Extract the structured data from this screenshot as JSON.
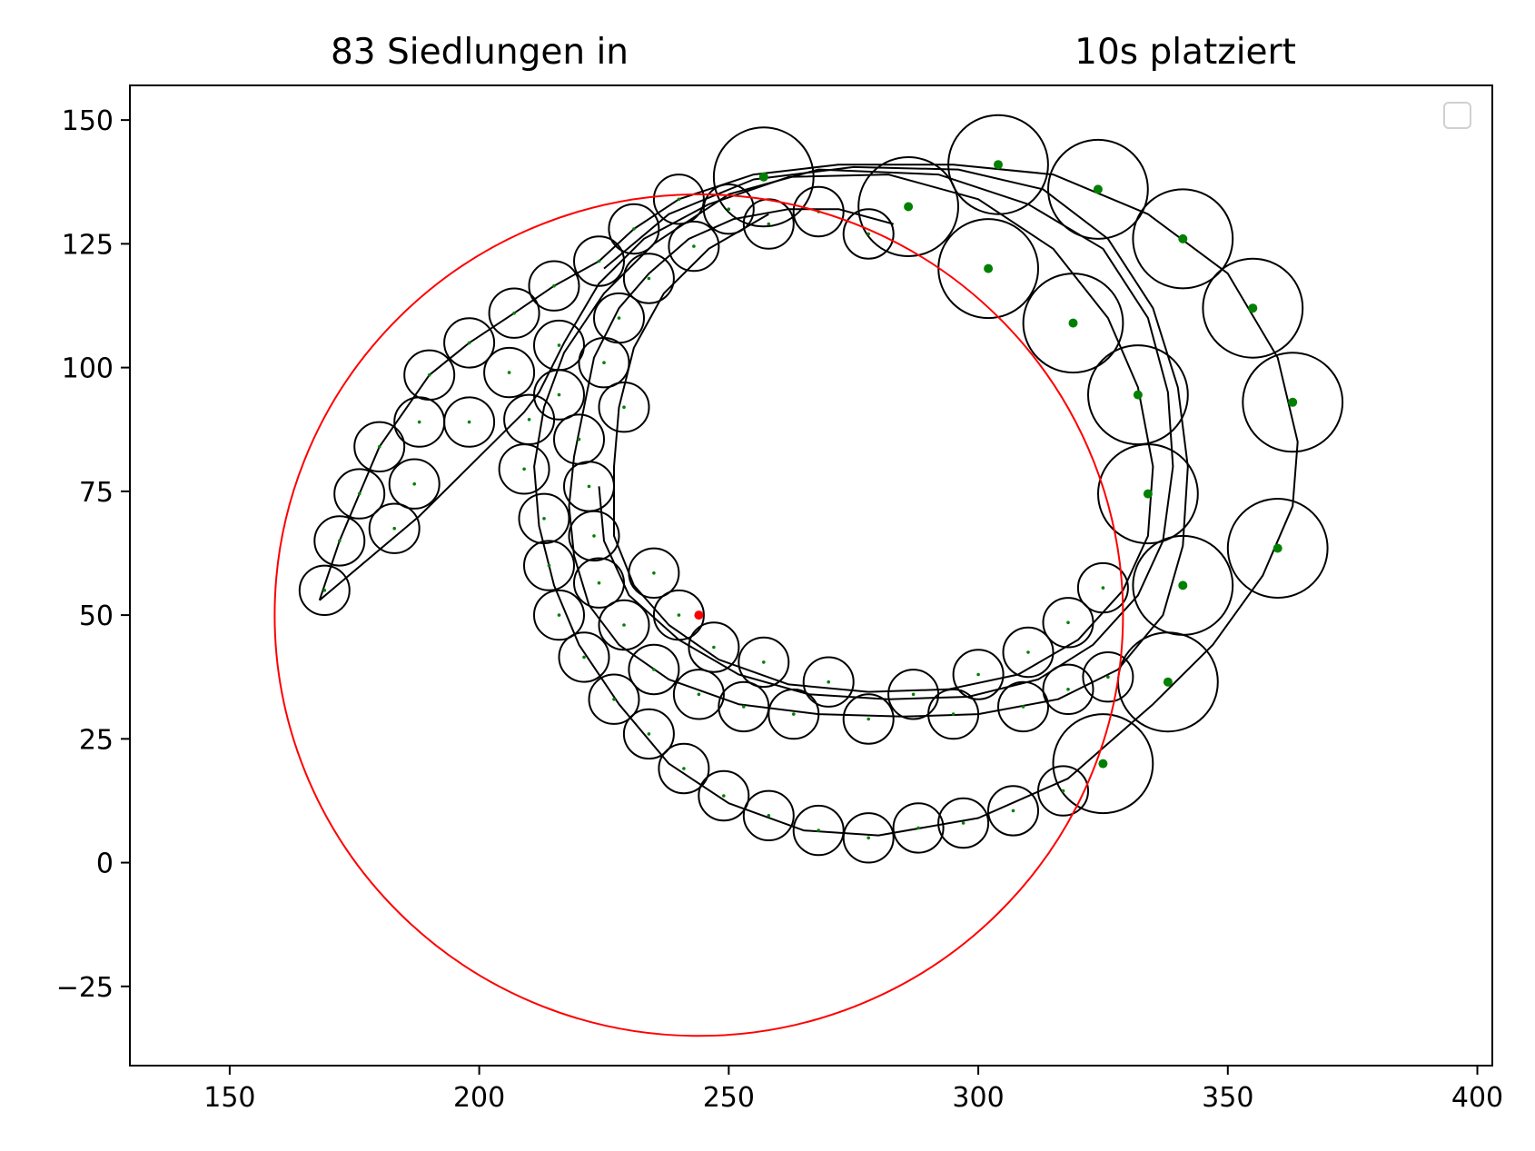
{
  "chart_data": {
    "type": "scatter",
    "title_left": "83 Siedlungen in",
    "title_right": "10s platziert",
    "xlabel": "",
    "ylabel": "",
    "xlim": [
      130,
      403
    ],
    "ylim": [
      -41,
      157
    ],
    "xticks": [
      150,
      200,
      250,
      300,
      350,
      400
    ],
    "yticks": [
      -25,
      0,
      25,
      50,
      75,
      100,
      125,
      150
    ],
    "ytick_labels": [
      "−25",
      "0",
      "25",
      "50",
      "75",
      "100",
      "125",
      "150"
    ],
    "grid": false,
    "legend": {
      "placement": "top-right",
      "entries": []
    },
    "colors": {
      "settlement_edge": "#000000",
      "center_dot": "#008000",
      "boundary": "#ff0000",
      "path": "#000000"
    },
    "boundary_circle": {
      "cx": 244,
      "cy": 50,
      "r": 85
    },
    "start_point": {
      "x": 244,
      "y": 50
    },
    "settlements": [
      {
        "x": 169,
        "y": 55,
        "r": 5
      },
      {
        "x": 172,
        "y": 65,
        "r": 5
      },
      {
        "x": 176,
        "y": 74.5,
        "r": 5
      },
      {
        "x": 180,
        "y": 84,
        "r": 5
      },
      {
        "x": 190,
        "y": 98.5,
        "r": 5
      },
      {
        "x": 198,
        "y": 105,
        "r": 5
      },
      {
        "x": 207,
        "y": 111,
        "r": 5
      },
      {
        "x": 215,
        "y": 116.5,
        "r": 5
      },
      {
        "x": 224,
        "y": 121.5,
        "r": 5
      },
      {
        "x": 231,
        "y": 128,
        "r": 5
      },
      {
        "x": 240,
        "y": 134,
        "r": 5
      },
      {
        "x": 250,
        "y": 132,
        "r": 5
      },
      {
        "x": 258,
        "y": 129,
        "r": 5
      },
      {
        "x": 268,
        "y": 131.5,
        "r": 5
      },
      {
        "x": 278,
        "y": 127,
        "r": 5
      },
      {
        "x": 257,
        "y": 138.5,
        "r": 10
      },
      {
        "x": 286,
        "y": 132.5,
        "r": 10
      },
      {
        "x": 304,
        "y": 141,
        "r": 10
      },
      {
        "x": 324,
        "y": 136,
        "r": 10
      },
      {
        "x": 341,
        "y": 126,
        "r": 10
      },
      {
        "x": 355,
        "y": 112,
        "r": 10
      },
      {
        "x": 363,
        "y": 93,
        "r": 10
      },
      {
        "x": 360,
        "y": 63.5,
        "r": 10
      },
      {
        "x": 341,
        "y": 56,
        "r": 10
      },
      {
        "x": 338,
        "y": 36.5,
        "r": 10
      },
      {
        "x": 325,
        "y": 20,
        "r": 10
      },
      {
        "x": 302,
        "y": 120,
        "r": 10
      },
      {
        "x": 319,
        "y": 109,
        "r": 10
      },
      {
        "x": 332,
        "y": 94.5,
        "r": 10
      },
      {
        "x": 334,
        "y": 74.5,
        "r": 10
      },
      {
        "x": 317,
        "y": 14.5,
        "r": 5
      },
      {
        "x": 307,
        "y": 10.5,
        "r": 5
      },
      {
        "x": 297,
        "y": 8,
        "r": 5
      },
      {
        "x": 288,
        "y": 7,
        "r": 5
      },
      {
        "x": 278,
        "y": 5,
        "r": 5
      },
      {
        "x": 268,
        "y": 6.5,
        "r": 5
      },
      {
        "x": 258,
        "y": 9.5,
        "r": 5
      },
      {
        "x": 249,
        "y": 13.5,
        "r": 5
      },
      {
        "x": 241,
        "y": 19,
        "r": 5
      },
      {
        "x": 234,
        "y": 26,
        "r": 5
      },
      {
        "x": 227,
        "y": 33,
        "r": 5
      },
      {
        "x": 221,
        "y": 41.5,
        "r": 5
      },
      {
        "x": 216,
        "y": 50,
        "r": 5
      },
      {
        "x": 214,
        "y": 60,
        "r": 5
      },
      {
        "x": 213,
        "y": 69.5,
        "r": 5
      },
      {
        "x": 209,
        "y": 79.5,
        "r": 5
      },
      {
        "x": 210,
        "y": 89.5,
        "r": 5
      },
      {
        "x": 206,
        "y": 99,
        "r": 5
      },
      {
        "x": 198,
        "y": 89,
        "r": 5
      },
      {
        "x": 188,
        "y": 89,
        "r": 5
      },
      {
        "x": 187,
        "y": 76.5,
        "r": 5
      },
      {
        "x": 183,
        "y": 67.5,
        "r": 5
      },
      {
        "x": 216,
        "y": 104.5,
        "r": 5
      },
      {
        "x": 216,
        "y": 94.5,
        "r": 5
      },
      {
        "x": 220,
        "y": 85.5,
        "r": 5
      },
      {
        "x": 222,
        "y": 76,
        "r": 5
      },
      {
        "x": 225,
        "y": 101,
        "r": 5
      },
      {
        "x": 229,
        "y": 92,
        "r": 5
      },
      {
        "x": 228,
        "y": 110,
        "r": 5
      },
      {
        "x": 234,
        "y": 118,
        "r": 5
      },
      {
        "x": 243,
        "y": 124.5,
        "r": 5
      },
      {
        "x": 223,
        "y": 66,
        "r": 5
      },
      {
        "x": 224,
        "y": 56.5,
        "r": 5
      },
      {
        "x": 229,
        "y": 48,
        "r": 5
      },
      {
        "x": 235,
        "y": 39,
        "r": 5
      },
      {
        "x": 244,
        "y": 34,
        "r": 5
      },
      {
        "x": 253,
        "y": 31.5,
        "r": 5
      },
      {
        "x": 263,
        "y": 30,
        "r": 5
      },
      {
        "x": 278,
        "y": 29,
        "r": 5
      },
      {
        "x": 295,
        "y": 30,
        "r": 5
      },
      {
        "x": 309,
        "y": 31.5,
        "r": 5
      },
      {
        "x": 318,
        "y": 35,
        "r": 5
      },
      {
        "x": 326,
        "y": 37.5,
        "r": 5
      },
      {
        "x": 235,
        "y": 58.5,
        "r": 5
      },
      {
        "x": 240,
        "y": 50,
        "r": 5
      },
      {
        "x": 247,
        "y": 43.5,
        "r": 5
      },
      {
        "x": 257,
        "y": 40.5,
        "r": 5
      },
      {
        "x": 270,
        "y": 36.5,
        "r": 5
      },
      {
        "x": 287,
        "y": 34,
        "r": 5
      },
      {
        "x": 300,
        "y": 38,
        "r": 5
      },
      {
        "x": 310,
        "y": 42.5,
        "r": 5
      },
      {
        "x": 318,
        "y": 48.5,
        "r": 5
      },
      {
        "x": 325,
        "y": 55.5,
        "r": 5
      }
    ],
    "paths": [
      [
        [
          168,
          53
        ],
        [
          172,
          65
        ],
        [
          176,
          74.5
        ],
        [
          180,
          84
        ],
        [
          190,
          98.5
        ],
        [
          198,
          105
        ],
        [
          207,
          111
        ],
        [
          215,
          116.5
        ],
        [
          224,
          121.5
        ],
        [
          231,
          128
        ],
        [
          240,
          134
        ],
        [
          255,
          139
        ],
        [
          272,
          141
        ],
        [
          295,
          141
        ],
        [
          315,
          139
        ],
        [
          334,
          131
        ],
        [
          350,
          119
        ],
        [
          360,
          102
        ],
        [
          364,
          85
        ],
        [
          363,
          72
        ],
        [
          357,
          58
        ],
        [
          347,
          44
        ],
        [
          335,
          32
        ],
        [
          318,
          17
        ],
        [
          300,
          9
        ],
        [
          280,
          5.5
        ],
        [
          265,
          6.5
        ],
        [
          250,
          12
        ],
        [
          238,
          20
        ],
        [
          228,
          32
        ],
        [
          220,
          44
        ],
        [
          215,
          56
        ],
        [
          212,
          68
        ],
        [
          211,
          80
        ],
        [
          213,
          92
        ],
        [
          217,
          103
        ],
        [
          225,
          115
        ],
        [
          235,
          125
        ],
        [
          250,
          135
        ],
        [
          268,
          140
        ],
        [
          292,
          139
        ],
        [
          310,
          133
        ],
        [
          325,
          124
        ],
        [
          334,
          110
        ],
        [
          338,
          95
        ],
        [
          339,
          80
        ],
        [
          337,
          65
        ],
        [
          332,
          54
        ],
        [
          323,
          44
        ],
        [
          312,
          37
        ],
        [
          298,
          33.5
        ],
        [
          282,
          33
        ],
        [
          266,
          34
        ],
        [
          252,
          38
        ],
        [
          240,
          45
        ],
        [
          230,
          54
        ],
        [
          225,
          65
        ],
        [
          224,
          76
        ]
      ],
      [
        [
          168,
          53
        ],
        [
          188,
          70
        ],
        [
          200,
          82
        ],
        [
          209,
          91
        ],
        [
          212,
          95
        ],
        [
          217,
          105
        ],
        [
          224,
          117
        ],
        [
          233,
          126
        ],
        [
          246,
          133
        ],
        [
          262,
          138.5
        ],
        [
          282,
          139
        ],
        [
          300,
          134
        ],
        [
          315,
          124
        ],
        [
          326,
          110
        ],
        [
          332,
          96
        ],
        [
          335,
          80
        ],
        [
          334,
          66
        ],
        [
          329,
          55
        ],
        [
          320,
          45
        ],
        [
          308,
          38
        ],
        [
          294,
          35
        ],
        [
          278,
          34.5
        ],
        [
          262,
          36
        ],
        [
          248,
          41
        ],
        [
          238,
          48
        ],
        [
          231,
          56
        ],
        [
          227,
          66
        ],
        [
          227,
          80
        ],
        [
          228,
          92
        ],
        [
          231,
          104
        ],
        [
          237,
          115
        ],
        [
          246,
          124
        ],
        [
          258,
          131
        ]
      ],
      [
        [
          225,
          120
        ],
        [
          238,
          131
        ],
        [
          255,
          138
        ],
        [
          275,
          140.5
        ],
        [
          296,
          140
        ],
        [
          313,
          136
        ],
        [
          326,
          126
        ],
        [
          335,
          112
        ],
        [
          340,
          96
        ],
        [
          342,
          80
        ],
        [
          341,
          64
        ],
        [
          337,
          50
        ],
        [
          328,
          39
        ],
        [
          316,
          33
        ],
        [
          300,
          30
        ],
        [
          285,
          29.5
        ],
        [
          268,
          30
        ],
        [
          252,
          32
        ],
        [
          238,
          37
        ],
        [
          228,
          44
        ],
        [
          222,
          52
        ],
        [
          219,
          62
        ],
        [
          218,
          72
        ],
        [
          219,
          82
        ],
        [
          221,
          92
        ],
        [
          223,
          102
        ],
        [
          228,
          112
        ],
        [
          234,
          119
        ],
        [
          242,
          126
        ],
        [
          251,
          130
        ],
        [
          262,
          132
        ],
        [
          272,
          132
        ],
        [
          283,
          129
        ]
      ]
    ]
  }
}
